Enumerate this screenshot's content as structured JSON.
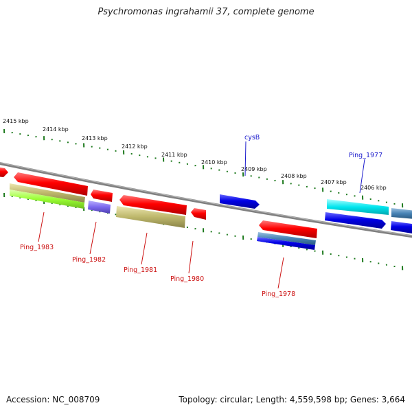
{
  "title": "Psychromonas ingrahamii 37, complete genome",
  "footer": {
    "accession": "Accession: NC_008709",
    "topology": "Topology: circular; Length: 4,559,598 bp; Genes: 3,664"
  },
  "scale_labels": [
    "2415 kbp",
    "2414 kbp",
    "2413 kbp",
    "2412 kbp",
    "2411 kbp",
    "2410 kbp",
    "2409 kbp",
    "2408 kbp",
    "2407 kbp",
    "2406 kbp"
  ],
  "gene_labels": {
    "top": [
      "cysB",
      "Ping_1977"
    ],
    "bottom": [
      "Ping_1983",
      "Ping_1982",
      "Ping_1981",
      "Ping_1980",
      "Ping_1978"
    ]
  },
  "colors": {
    "top_label": "#1a1acc",
    "bottom_label": "#cc1111",
    "tick": "#1e7a1e",
    "backbone": "#808080",
    "red": "#ff0000",
    "blue": "#0000e6",
    "cyan": "#00e5ee",
    "steel": "#4682b4",
    "khaki": "#bdb76b",
    "lime": "#9aff33",
    "slate": "#7b68ee"
  }
}
